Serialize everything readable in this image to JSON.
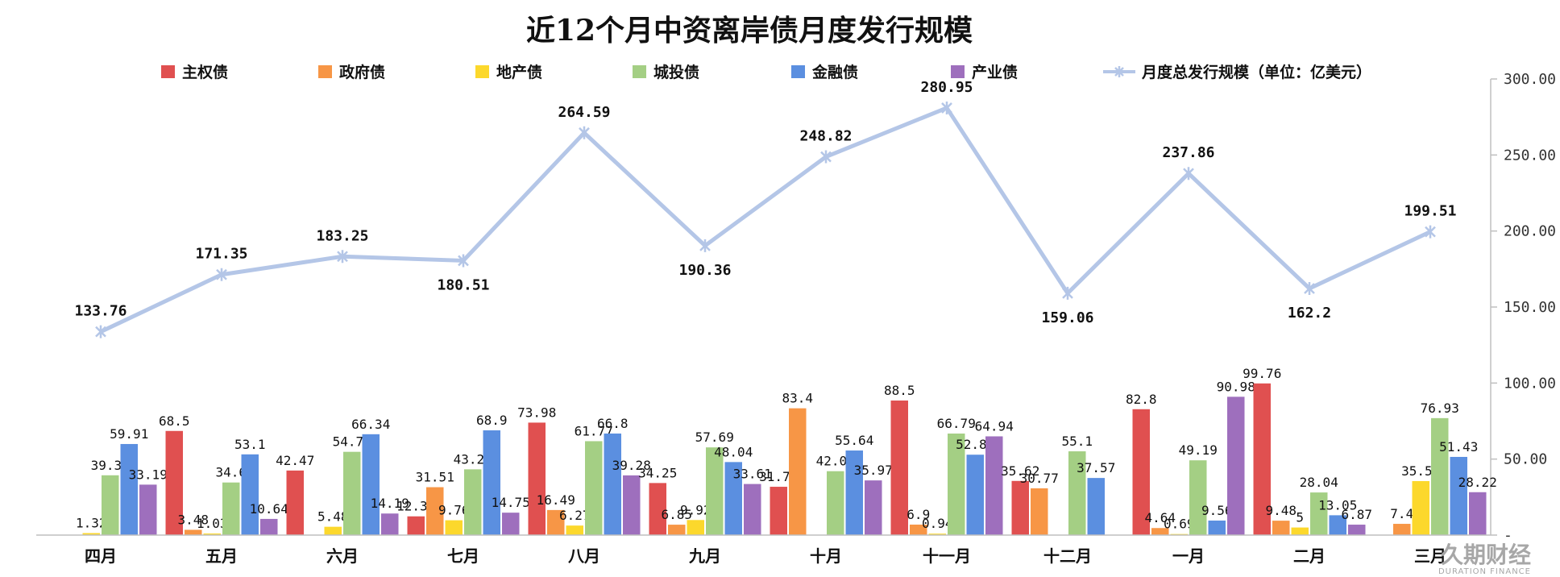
{
  "chart_data": {
    "type": "bar",
    "title": "近12个月中资离岸债月度发行规模",
    "categories": [
      "四月",
      "五月",
      "六月",
      "七月",
      "八月",
      "九月",
      "十月",
      "十一月",
      "十二月",
      "一月",
      "二月",
      "三月"
    ],
    "series": [
      {
        "name": "主权债",
        "type": "bar",
        "color": "#e05050",
        "values": [
          0,
          68.5,
          42.47,
          12.33,
          73.98,
          34.25,
          31.78,
          88.5,
          35.62,
          82.8,
          99.76,
          0
        ]
      },
      {
        "name": "政府债",
        "type": "bar",
        "color": "#f79646",
        "values": [
          0,
          3.48,
          0,
          31.51,
          16.49,
          6.85,
          83.4,
          6.9,
          30.77,
          4.64,
          9.48,
          7.4
        ]
      },
      {
        "name": "地产债",
        "type": "bar",
        "color": "#fcd82c",
        "values": [
          1.32,
          1.03,
          5.48,
          9.76,
          6.27,
          9.92,
          0,
          0.94,
          0,
          0.69,
          5.0,
          35.53
        ]
      },
      {
        "name": "城投债",
        "type": "bar",
        "color": "#a4cf84",
        "values": [
          39.34,
          34.6,
          54.77,
          43.26,
          61.77,
          57.69,
          42.03,
          66.79,
          55.1,
          49.19,
          28.04,
          76.93
        ]
      },
      {
        "name": "金融债",
        "type": "bar",
        "color": "#5b8fe0",
        "values": [
          59.91,
          53.1,
          66.34,
          68.9,
          66.8,
          48.04,
          55.64,
          52.88,
          37.57,
          9.56,
          13.05,
          51.43
        ]
      },
      {
        "name": "产业债",
        "type": "bar",
        "color": "#9e6fbd",
        "values": [
          33.19,
          10.64,
          14.19,
          14.75,
          39.28,
          33.61,
          35.97,
          64.94,
          0,
          90.98,
          6.87,
          28.22
        ]
      },
      {
        "name": "月度总发行规模（单位：亿美元）",
        "type": "line",
        "color": "#b4c6e7",
        "values": [
          133.76,
          171.35,
          183.25,
          180.51,
          264.59,
          190.36,
          248.82,
          280.95,
          159.06,
          237.86,
          162.2,
          199.51
        ]
      }
    ],
    "y_axis": {
      "position": "right",
      "ylim": [
        0,
        300
      ],
      "ticks": [
        "-",
        "50.00",
        "100.00",
        "150.00",
        "200.00",
        "250.00",
        "300.00"
      ]
    },
    "legend_position": "top",
    "grid": false
  },
  "watermark": {
    "text": "久期财经",
    "subtext": "DURATION FINANCE"
  }
}
